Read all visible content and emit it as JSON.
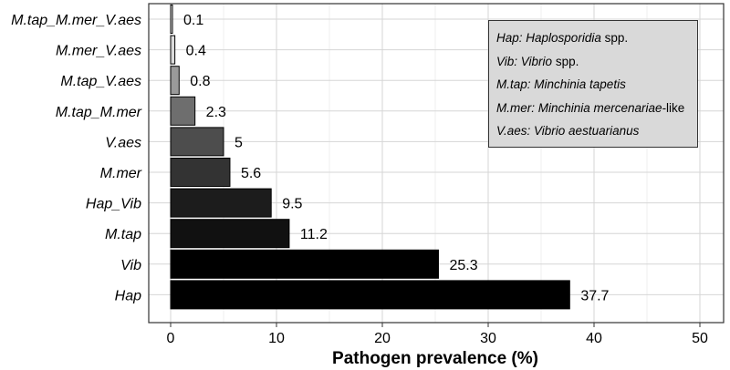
{
  "chart_data": {
    "type": "bar",
    "orientation": "horizontal",
    "categories": [
      "M.tap_M.mer_V.aes",
      "M.mer_V.aes",
      "M.tap_V.aes",
      "M.tap_M.mer",
      "V.aes",
      "M.mer",
      "Hap_Vib",
      "M.tap",
      "Vib",
      "Hap"
    ],
    "values": [
      0.1,
      0.4,
      0.8,
      2.3,
      5,
      5.6,
      9.5,
      11.2,
      25.3,
      37.7
    ],
    "value_labels": [
      "0.1",
      "0.4",
      "0.8",
      "2.3",
      "5",
      "5.6",
      "9.5",
      "11.2",
      "25.3",
      "37.7"
    ],
    "bar_colors": [
      "#ececec",
      "#dadada",
      "#9a9a9a",
      "#6e6e6e",
      "#4d4d4d",
      "#333333",
      "#1c1c1c",
      "#111111",
      "#000000",
      "#000000"
    ],
    "xlabel": "Pathogen prevalence (%)",
    "ylabel": "",
    "xlim": [
      0,
      50
    ],
    "xticks": [
      "0",
      "10",
      "20",
      "30",
      "40",
      "50"
    ],
    "grid": true,
    "legend_placement": "top-right",
    "legend": [
      {
        "abbr": "Hap:",
        "name": "Haplosporidia",
        "suffix": " spp."
      },
      {
        "abbr": "Vib:",
        "name": "Vibrio",
        "suffix": " spp."
      },
      {
        "abbr": "M.tap:",
        "name": "Minchinia tapetis",
        "suffix": ""
      },
      {
        "abbr": "M.mer:",
        "name": "Minchinia mercenariae",
        "suffix": "-like"
      },
      {
        "abbr": "V.aes:",
        "name": "Vibrio aestuarianus",
        "suffix": ""
      }
    ]
  }
}
